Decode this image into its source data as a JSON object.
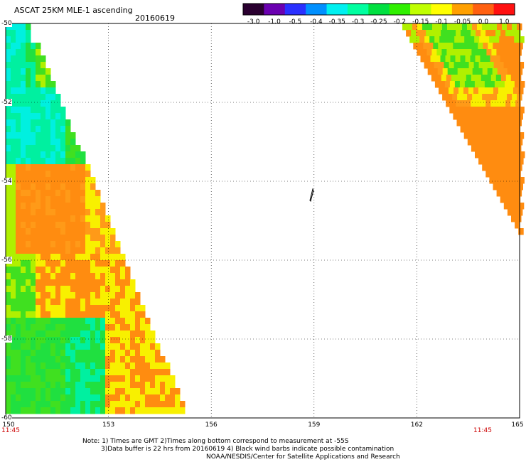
{
  "header": {
    "title": "ASCAT 25KM MLE-1 ascending",
    "date": "20160619"
  },
  "colorbar": {
    "colors": [
      "#2a0030",
      "#6a00b0",
      "#2a30ff",
      "#0090ff",
      "#00f0f0",
      "#00ffa0",
      "#00e040",
      "#30f000",
      "#c0ff00",
      "#ffff00",
      "#ffa000",
      "#ff6010",
      "#ff1010"
    ],
    "ticks": [
      "-3.0",
      "-1.0",
      "-0.5",
      "-0.4",
      "-0.35",
      "-0.3",
      "-0.25",
      "-0.2",
      "-0.15",
      "-0.1",
      "-0.05",
      "0.0",
      "1.0"
    ]
  },
  "axes": {
    "lat_labels": [
      "-50",
      "-52",
      "-54",
      "-56",
      "-58",
      "-60"
    ],
    "lon_labels": [
      "150",
      "153",
      "156",
      "159",
      "162",
      "165"
    ],
    "lat_range": [
      -60,
      -50
    ],
    "lon_range": [
      150,
      165
    ]
  },
  "times": {
    "left": "11:45",
    "right": "11:45"
  },
  "notes": {
    "line1": "Note: 1) Times are GMT 2)Times along bottom correspond to measurement at -55S",
    "line2": "3)Data buffer is 22 hrs from 20160619 4) Black wind barbs indicate possible contamination",
    "line3": "NOAA/NESDIS/Center for Satellite Applications and Research"
  },
  "palette": {
    "orange": "#ff8c10",
    "orange2": "#ff9a18",
    "yellow": "#f8f000",
    "yellowgreen": "#b0f000",
    "green": "#40e020",
    "green2": "#20e040",
    "teal": "#00f0a0",
    "cyan": "#00f0e0",
    "blue": "#1080ff"
  }
}
